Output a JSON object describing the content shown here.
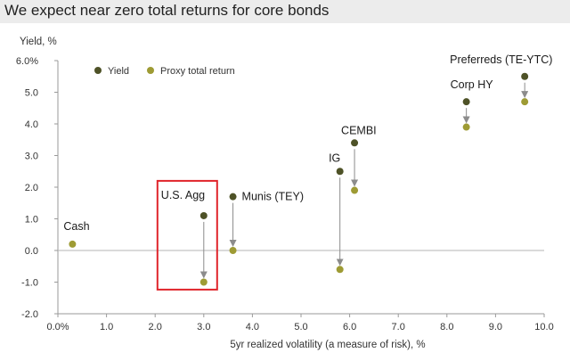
{
  "header": {
    "title": "We expect near zero total returns for core bonds"
  },
  "colors": {
    "yield": "#4e5227",
    "proxy": "#9e9b34",
    "highlight": "#e0242b",
    "arrow": "#8c8c8c",
    "axis": "#9a9a9a",
    "title_bg": "#ececec"
  },
  "chart_data": {
    "type": "scatter",
    "title": "We expect near zero total returns for core bonds",
    "ylabel": "Yield, %",
    "xlabel": "5yr realized volatility (a measure of risk), %",
    "xlim": [
      0,
      10
    ],
    "ylim": [
      -2,
      6
    ],
    "x_ticks": [
      0,
      1,
      2,
      3,
      4,
      5,
      6,
      7,
      8,
      9,
      10
    ],
    "x_tick_labels": [
      "0.0%",
      "1.0",
      "2.0",
      "3.0",
      "4.0",
      "5.0",
      "6.0",
      "7.0",
      "8.0",
      "9.0",
      "10.0"
    ],
    "y_ticks": [
      6,
      5,
      4,
      3,
      2,
      1,
      0,
      -1,
      -2
    ],
    "y_tick_labels": [
      "6.0%",
      "5.0",
      "4.0",
      "3.0",
      "2.0",
      "1.0",
      "0.0",
      "-1.0",
      "-2.0"
    ],
    "legend": [
      "Yield",
      "Proxy total return"
    ],
    "legend_position": "top-left",
    "series": [
      {
        "name": "Yield",
        "points": [
          {
            "label": "U.S. Agg",
            "x": 3.0,
            "y": 1.1
          },
          {
            "label": "Munis (TEY)",
            "x": 3.6,
            "y": 1.7
          },
          {
            "label": "IG",
            "x": 5.8,
            "y": 2.5
          },
          {
            "label": "CEMBI",
            "x": 6.1,
            "y": 3.4
          },
          {
            "label": "Corp HY",
            "x": 8.4,
            "y": 4.7
          },
          {
            "label": "Preferreds (TE-YTC)",
            "x": 9.6,
            "y": 5.5
          }
        ]
      },
      {
        "name": "Proxy total return",
        "points": [
          {
            "label": "Cash",
            "x": 0.3,
            "y": 0.2
          },
          {
            "label": "U.S. Agg",
            "x": 3.0,
            "y": -1.0
          },
          {
            "label": "Munis (TEY)",
            "x": 3.6,
            "y": 0.0
          },
          {
            "label": "IG",
            "x": 5.8,
            "y": -0.6
          },
          {
            "label": "CEMBI",
            "x": 6.1,
            "y": 1.9
          },
          {
            "label": "Corp HY",
            "x": 8.4,
            "y": 3.9
          },
          {
            "label": "Preferreds (TE-YTC)",
            "x": 9.6,
            "y": 4.7
          }
        ]
      }
    ],
    "labels": [
      "Cash",
      "U.S. Agg",
      "Munis (TEY)",
      "IG",
      "CEMBI",
      "Corp HY",
      "Preferreds (TE-YTC)"
    ],
    "highlight": "U.S. Agg"
  }
}
